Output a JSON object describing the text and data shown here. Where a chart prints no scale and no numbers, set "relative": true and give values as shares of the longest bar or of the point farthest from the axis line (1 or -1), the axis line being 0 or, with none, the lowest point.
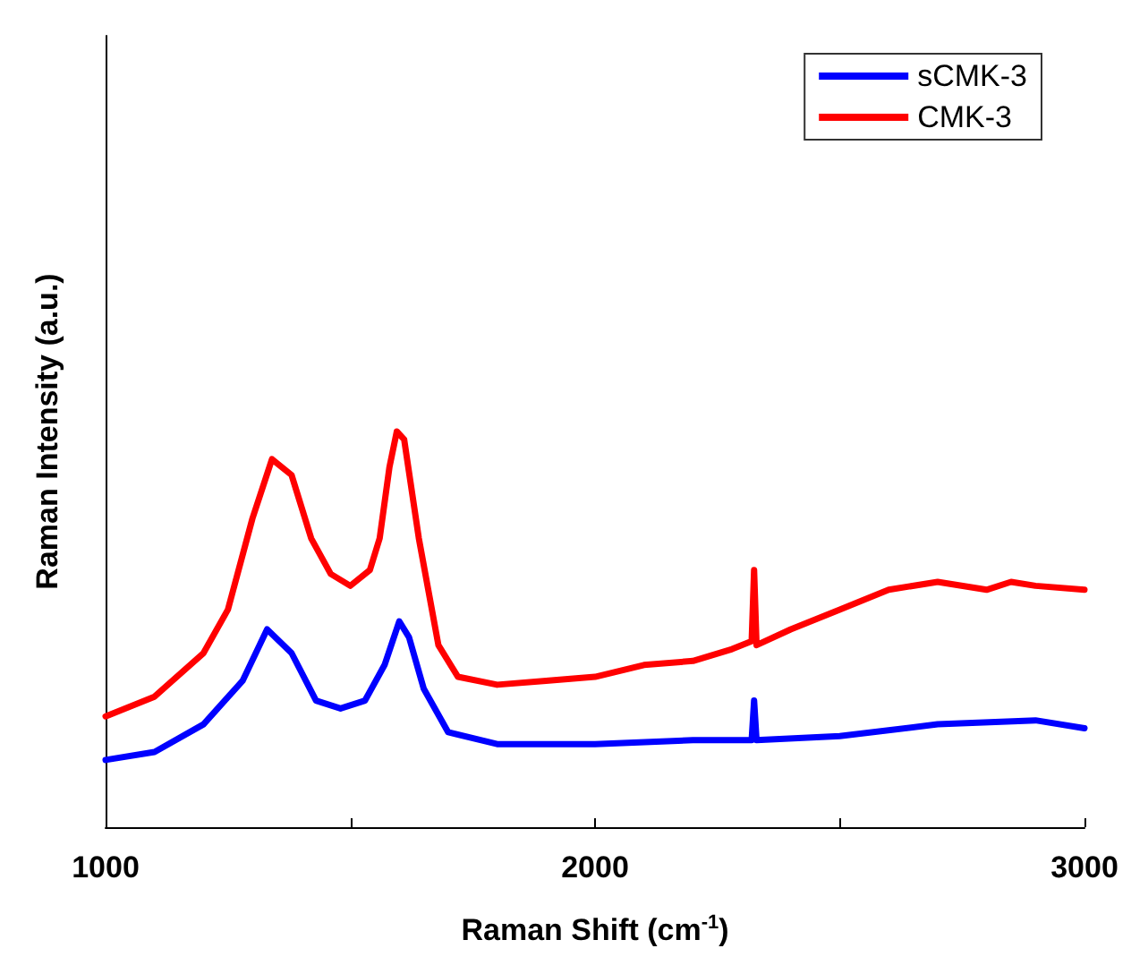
{
  "chart_data": {
    "type": "line",
    "relative": true,
    "xlabel": "Raman Shift (cm$^{-1}$)",
    "ylabel": "Raman Intensity (a.u.)",
    "xlim": [
      1000,
      3000
    ],
    "xticks": [
      1000,
      {
        "value": 1500,
        "label": null
      },
      2000,
      {
        "value": 2500,
        "label": null
      },
      3000
    ],
    "grid": false,
    "legend": "top right",
    "marker": "none",
    "line_style": "solid",
    "series": [
      {
        "name": "sCMK-3",
        "color": "#0000ff",
        "x": [
          1000,
          1100,
          1200,
          1280,
          1330,
          1380,
          1430,
          1480,
          1530,
          1570,
          1600,
          1620,
          1650,
          1700,
          1800,
          2000,
          2200,
          2320,
          2325,
          2330,
          2500,
          2700,
          2900,
          3000
        ],
        "values": [
          0.17,
          0.19,
          0.26,
          0.37,
          0.5,
          0.44,
          0.32,
          0.3,
          0.32,
          0.41,
          0.52,
          0.48,
          0.35,
          0.24,
          0.21,
          0.21,
          0.22,
          0.22,
          0.32,
          0.22,
          0.23,
          0.26,
          0.27,
          0.25
        ]
      },
      {
        "name": "CMK-3",
        "color": "#ff0000",
        "x": [
          1000,
          1100,
          1200,
          1250,
          1300,
          1340,
          1380,
          1420,
          1460,
          1500,
          1540,
          1560,
          1580,
          1595,
          1610,
          1640,
          1680,
          1720,
          1800,
          1900,
          2000,
          2100,
          2200,
          2280,
          2320,
          2325,
          2330,
          2400,
          2500,
          2600,
          2700,
          2800,
          2850,
          2900,
          3000
        ],
        "values": [
          0.28,
          0.33,
          0.44,
          0.55,
          0.78,
          0.93,
          0.89,
          0.73,
          0.64,
          0.61,
          0.65,
          0.73,
          0.91,
          1,
          0.98,
          0.73,
          0.46,
          0.38,
          0.36,
          0.37,
          0.38,
          0.41,
          0.42,
          0.45,
          0.47,
          0.65,
          0.46,
          0.5,
          0.55,
          0.6,
          0.62,
          0.6,
          0.62,
          0.61,
          0.6
        ]
      }
    ]
  }
}
